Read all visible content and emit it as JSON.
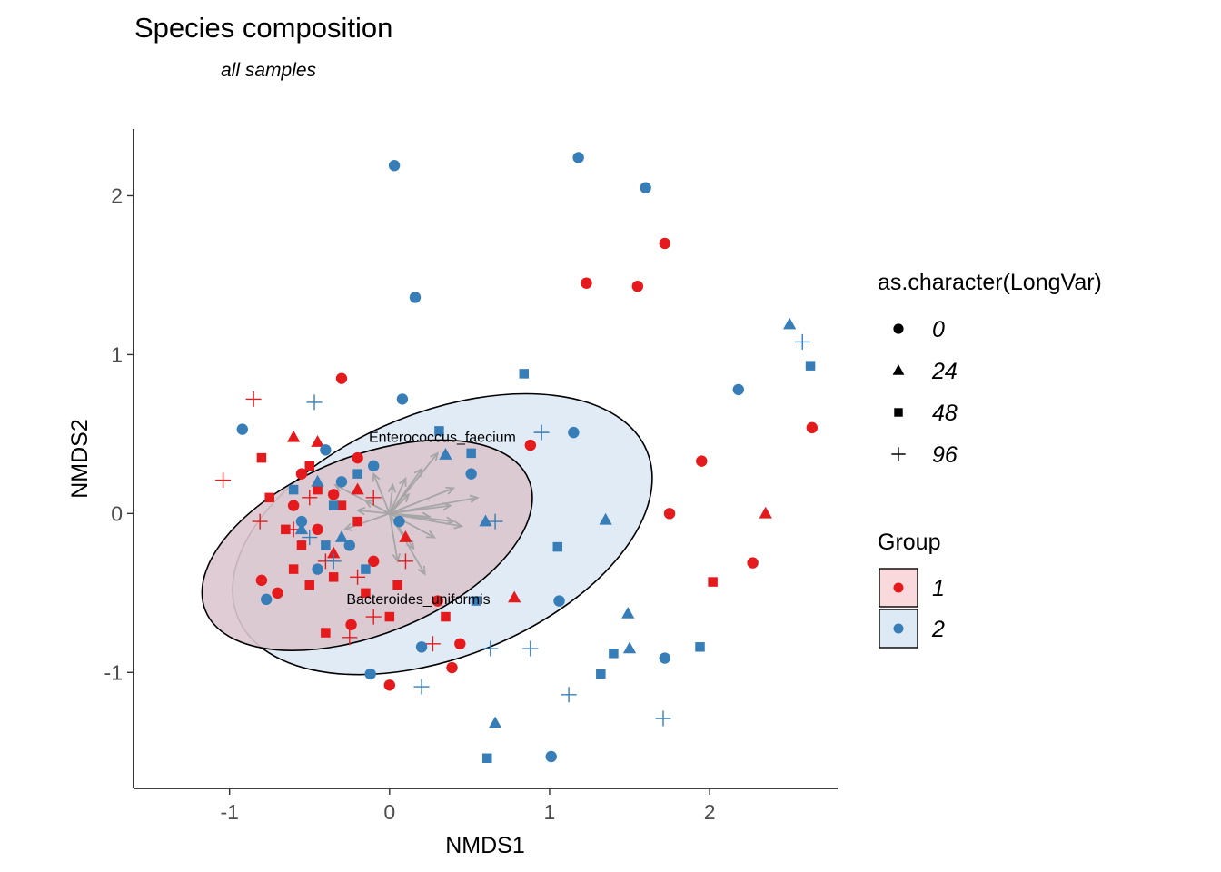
{
  "chart_data": {
    "type": "scatter",
    "title": "Species composition",
    "subtitle": "all samples",
    "xlabel": "NMDS1",
    "ylabel": "NMDS2",
    "xlim": [
      -1.6,
      2.8
    ],
    "ylim": [
      -1.73,
      2.42
    ],
    "xticks": [
      -1,
      0,
      1,
      2
    ],
    "yticks": [
      -1,
      0,
      1,
      2
    ],
    "grid": false,
    "colors": {
      "1": "#e41a1c",
      "2": "#377eb8"
    },
    "legend_shape": {
      "title": "as.character(LongVar)",
      "entries": [
        {
          "label": "0",
          "shape": "circle"
        },
        {
          "label": "24",
          "shape": "triangle"
        },
        {
          "label": "48",
          "shape": "square"
        },
        {
          "label": "96",
          "shape": "plus"
        }
      ]
    },
    "legend_group": {
      "title": "Group",
      "entries": [
        {
          "label": "1",
          "color": "#e41a1c",
          "fill": "#f9d9dc"
        },
        {
          "label": "2",
          "color": "#377eb8",
          "fill": "#dde9f4"
        }
      ]
    },
    "ellipses": [
      {
        "group": "2",
        "level": "outer",
        "cx": 0.33,
        "cy": -0.13,
        "rx": 1.38,
        "ry": 0.77,
        "angle_deg": -22,
        "fill": "#dde9f4"
      },
      {
        "group": "1",
        "level": "inner",
        "cx": -0.14,
        "cy": -0.2,
        "rx": 1.09,
        "ry": 0.56,
        "angle_deg": -22,
        "fill": "#dcc7cf"
      }
    ],
    "species_labels": [
      {
        "text": "Enterococcus_faecium",
        "x": 0.33,
        "y": 0.45
      },
      {
        "text": "Bacteroides_uniformis",
        "x": 0.18,
        "y": -0.57
      }
    ],
    "vectors": [
      [
        0.3,
        0.38
      ],
      [
        0.55,
        0.1
      ],
      [
        0.4,
        -0.05
      ],
      [
        0.22,
        -0.38
      ],
      [
        -0.34,
        0.18
      ],
      [
        0.15,
        -0.22
      ],
      [
        -0.1,
        0.25
      ],
      [
        0.12,
        0.12
      ],
      [
        0.38,
        0.05
      ],
      [
        -0.28,
        -0.1
      ],
      [
        0.05,
        -0.3
      ],
      [
        0.25,
        -0.02
      ],
      [
        0.1,
        0.22
      ],
      [
        -0.15,
        0.08
      ],
      [
        0.28,
        -0.15
      ],
      [
        0.4,
        0.16
      ],
      [
        -0.2,
        0.02
      ],
      [
        0.02,
        0.18
      ],
      [
        0.2,
        0.28
      ],
      [
        0.45,
        -0.08
      ]
    ],
    "series": [
      {
        "name": "1",
        "points": [
          [
            1.72,
            1.7,
            "0"
          ],
          [
            1.23,
            1.45,
            "0"
          ],
          [
            1.55,
            1.43,
            "0"
          ],
          [
            2.64,
            0.54,
            "0"
          ],
          [
            1.95,
            0.33,
            "0"
          ],
          [
            1.75,
            0.0,
            "0"
          ],
          [
            2.27,
            -0.31,
            "0"
          ],
          [
            -0.3,
            0.85,
            "0"
          ],
          [
            0.88,
            0.43,
            "0"
          ],
          [
            0.39,
            -0.97,
            "0"
          ],
          [
            0.0,
            -1.08,
            "0"
          ],
          [
            0.3,
            -0.55,
            "0"
          ],
          [
            -0.8,
            -0.42,
            "0"
          ],
          [
            -0.7,
            -0.5,
            "0"
          ],
          [
            -0.24,
            -0.7,
            "0"
          ],
          [
            0.44,
            -0.82,
            "0"
          ],
          [
            -0.55,
            0.25,
            "0"
          ],
          [
            -0.35,
            0.12,
            "0"
          ],
          [
            -0.45,
            -0.1,
            "0"
          ],
          [
            -0.2,
            0.35,
            "0"
          ],
          [
            -0.6,
            0.05,
            "0"
          ],
          [
            -0.1,
            -0.3,
            "0"
          ],
          [
            2.35,
            0.0,
            "24"
          ],
          [
            0.78,
            -0.53,
            "24"
          ],
          [
            -0.6,
            0.48,
            "24"
          ],
          [
            -0.45,
            0.45,
            "24"
          ],
          [
            -0.2,
            0.15,
            "24"
          ],
          [
            -0.35,
            -0.25,
            "24"
          ],
          [
            0.1,
            -0.15,
            "24"
          ],
          [
            2.02,
            -0.43,
            "48"
          ],
          [
            0.35,
            -0.65,
            "48"
          ],
          [
            -0.5,
            -0.45,
            "48"
          ],
          [
            -0.35,
            -0.4,
            "48"
          ],
          [
            -0.4,
            -0.75,
            "48"
          ],
          [
            -0.8,
            0.35,
            "48"
          ],
          [
            -0.65,
            -0.1,
            "48"
          ],
          [
            -0.5,
            0.3,
            "48"
          ],
          [
            -0.55,
            -0.2,
            "48"
          ],
          [
            -0.2,
            -0.05,
            "48"
          ],
          [
            -0.3,
            0.05,
            "48"
          ],
          [
            -0.15,
            -0.5,
            "48"
          ],
          [
            -0.45,
            0.15,
            "48"
          ],
          [
            0.05,
            -0.45,
            "48"
          ],
          [
            -0.75,
            0.1,
            "48"
          ],
          [
            -0.6,
            -0.35,
            "48"
          ],
          [
            0.0,
            -0.65,
            "48"
          ],
          [
            -1.04,
            0.21,
            "96"
          ],
          [
            -0.85,
            0.72,
            "96"
          ],
          [
            -0.81,
            -0.05,
            "96"
          ],
          [
            -0.25,
            -0.78,
            "96"
          ],
          [
            -0.1,
            -0.65,
            "96"
          ],
          [
            0.27,
            -0.82,
            "96"
          ],
          [
            -0.6,
            -0.1,
            "96"
          ],
          [
            -0.4,
            -0.3,
            "96"
          ],
          [
            -0.2,
            -0.4,
            "96"
          ],
          [
            -0.1,
            0.1,
            "96"
          ],
          [
            -0.5,
            0.1,
            "96"
          ],
          [
            0.1,
            -0.3,
            "96"
          ]
        ]
      },
      {
        "name": "2",
        "points": [
          [
            0.03,
            2.19,
            "0"
          ],
          [
            1.18,
            2.24,
            "0"
          ],
          [
            1.6,
            2.05,
            "0"
          ],
          [
            0.16,
            1.36,
            "0"
          ],
          [
            2.18,
            0.78,
            "0"
          ],
          [
            0.08,
            0.72,
            "0"
          ],
          [
            1.15,
            0.51,
            "0"
          ],
          [
            0.51,
            0.25,
            "0"
          ],
          [
            -0.92,
            0.53,
            "0"
          ],
          [
            -0.77,
            -0.54,
            "0"
          ],
          [
            -0.12,
            -1.01,
            "0"
          ],
          [
            0.2,
            -0.84,
            "0"
          ],
          [
            1.06,
            -0.55,
            "0"
          ],
          [
            1.72,
            -0.91,
            "0"
          ],
          [
            1.01,
            -1.53,
            "0"
          ],
          [
            -0.4,
            0.4,
            "0"
          ],
          [
            -0.3,
            0.2,
            "0"
          ],
          [
            -0.55,
            -0.05,
            "0"
          ],
          [
            -0.25,
            -0.2,
            "0"
          ],
          [
            -0.45,
            -0.35,
            "0"
          ],
          [
            -0.1,
            0.3,
            "0"
          ],
          [
            0.06,
            -0.05,
            "0"
          ],
          [
            2.5,
            1.19,
            "24"
          ],
          [
            0.35,
            0.37,
            "24"
          ],
          [
            0.6,
            -0.05,
            "24"
          ],
          [
            1.35,
            -0.04,
            "24"
          ],
          [
            1.49,
            -0.63,
            "24"
          ],
          [
            1.5,
            -0.85,
            "24"
          ],
          [
            0.66,
            -1.32,
            "24"
          ],
          [
            -0.45,
            0.2,
            "24"
          ],
          [
            -0.3,
            -0.15,
            "24"
          ],
          [
            -0.55,
            -0.1,
            "24"
          ],
          [
            2.63,
            0.93,
            "48"
          ],
          [
            0.84,
            0.88,
            "48"
          ],
          [
            0.31,
            0.52,
            "48"
          ],
          [
            0.51,
            0.38,
            "48"
          ],
          [
            1.05,
            -0.21,
            "48"
          ],
          [
            0.54,
            -0.55,
            "48"
          ],
          [
            1.4,
            -0.88,
            "48"
          ],
          [
            1.32,
            -1.01,
            "48"
          ],
          [
            1.94,
            -0.84,
            "48"
          ],
          [
            0.61,
            -1.54,
            "48"
          ],
          [
            -0.35,
            0.05,
            "48"
          ],
          [
            -0.4,
            -0.2,
            "48"
          ],
          [
            -0.2,
            0.25,
            "48"
          ],
          [
            -0.6,
            0.15,
            "48"
          ],
          [
            -0.15,
            -0.35,
            "48"
          ],
          [
            2.58,
            1.08,
            "96"
          ],
          [
            0.95,
            0.51,
            "96"
          ],
          [
            0.66,
            -0.05,
            "96"
          ],
          [
            -0.47,
            0.7,
            "96"
          ],
          [
            0.63,
            -0.85,
            "96"
          ],
          [
            0.88,
            -0.85,
            "96"
          ],
          [
            0.2,
            -1.09,
            "96"
          ],
          [
            1.12,
            -1.14,
            "96"
          ],
          [
            1.71,
            -1.29,
            "96"
          ],
          [
            -0.5,
            -0.15,
            "96"
          ],
          [
            -0.35,
            -0.3,
            "96"
          ]
        ]
      }
    ]
  }
}
